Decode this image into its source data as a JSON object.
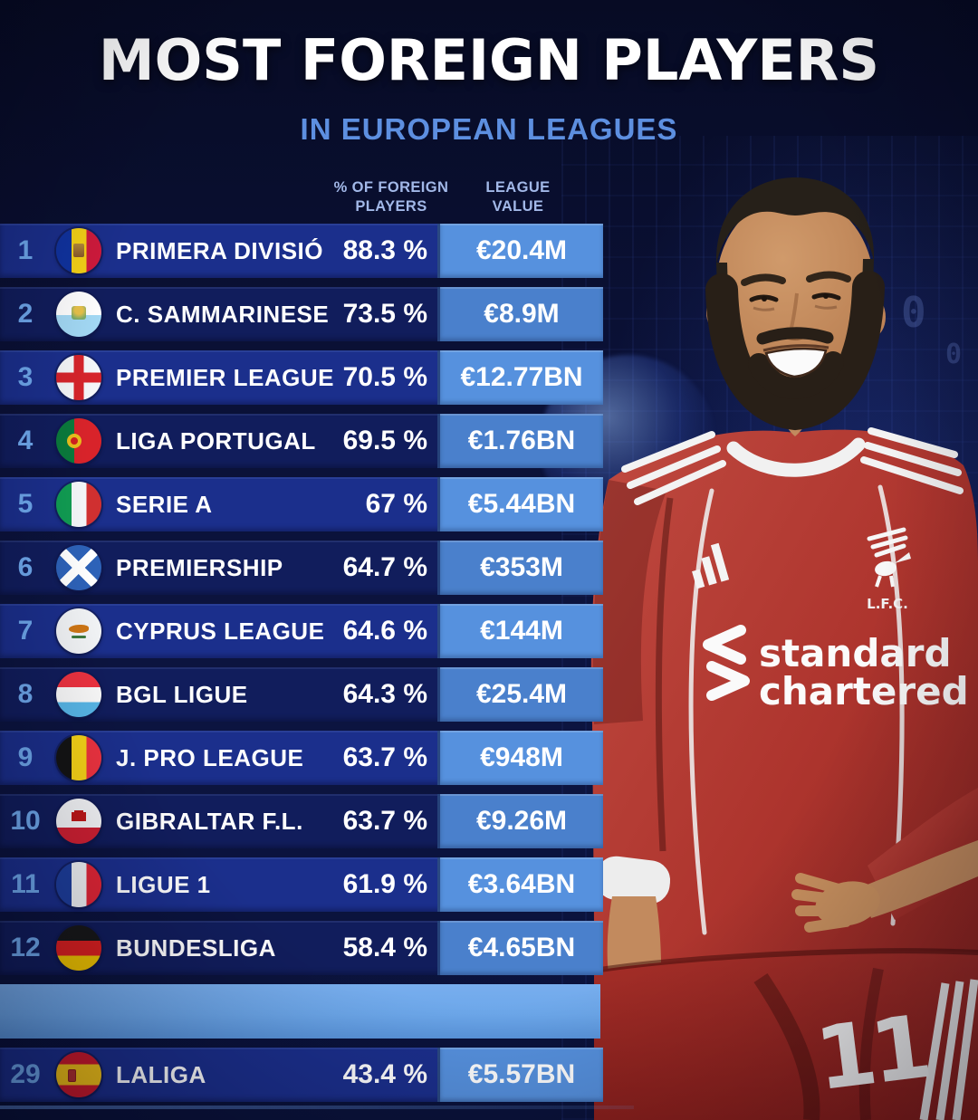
{
  "header": {
    "title": "MOST FOREIGN PLAYERS",
    "subtitle": "IN EUROPEAN LEAGUES"
  },
  "table": {
    "col_pct_line1": "% OF FOREIGN",
    "col_pct_line2": "PLAYERS",
    "col_value_line1": "LEAGUE",
    "col_value_line2": "VALUE",
    "rows": [
      {
        "rank": "1",
        "flag": "andorra",
        "league": "PRIMERA DIVISIÓ",
        "pct": "88.3 %",
        "value": "€20.4M"
      },
      {
        "rank": "2",
        "flag": "san-marino",
        "league": "C. SAMMARINESE",
        "pct": "73.5 %",
        "value": "€8.9M"
      },
      {
        "rank": "3",
        "flag": "england",
        "league": "PREMIER LEAGUE",
        "pct": "70.5 %",
        "value": "€12.77BN"
      },
      {
        "rank": "4",
        "flag": "portugal",
        "league": "LIGA PORTUGAL",
        "pct": "69.5 %",
        "value": "€1.76BN"
      },
      {
        "rank": "5",
        "flag": "italy",
        "league": "SERIE A",
        "pct": "67 %",
        "value": "€5.44BN"
      },
      {
        "rank": "6",
        "flag": "scotland",
        "league": "PREMIERSHIP",
        "pct": "64.7 %",
        "value": "€353M"
      },
      {
        "rank": "7",
        "flag": "cyprus",
        "league": "CYPRUS LEAGUE",
        "pct": "64.6 %",
        "value": "€144M"
      },
      {
        "rank": "8",
        "flag": "luxembourg",
        "league": "BGL LIGUE",
        "pct": "64.3 %",
        "value": "€25.4M"
      },
      {
        "rank": "9",
        "flag": "belgium",
        "league": "J. PRO LEAGUE",
        "pct": "63.7 %",
        "value": "€948M"
      },
      {
        "rank": "10",
        "flag": "gibraltar",
        "league": "GIBRALTAR F.L.",
        "pct": "63.7 %",
        "value": "€9.26M"
      },
      {
        "rank": "11",
        "flag": "france",
        "league": "LIGUE 1",
        "pct": "61.9 %",
        "value": "€3.64BN"
      },
      {
        "rank": "12",
        "flag": "germany",
        "league": "BUNDESLIGA",
        "pct": "58.4 %",
        "value": "€4.65BN"
      },
      {
        "rank": "29",
        "flag": "spain",
        "league": "LALIGA",
        "pct": "43.4 %",
        "value": "€5.57BN",
        "gap_before": true
      }
    ]
  },
  "player": {
    "sponsor_line1": "standard",
    "sponsor_line2": "chartered",
    "crest_label": "L.F.C.",
    "shirt_number": "11"
  },
  "background": {
    "glyphs": [
      "0",
      "0",
      "1 1"
    ]
  },
  "colors": {
    "background": "#0a0f2e",
    "title": "#ffffff",
    "subtitle": "#5d8fe0",
    "header_text": "#a2b8e8",
    "row_odd": "#1b2f8c",
    "row_even": "#111d5c",
    "value_cell_odd": "#5691de",
    "value_cell_even": "#4a80cc",
    "rank_text": "#6fa9ee",
    "row_text": "#ffffff",
    "gap_band": "#6ca7ea",
    "shirt_red": "#b03a32"
  }
}
